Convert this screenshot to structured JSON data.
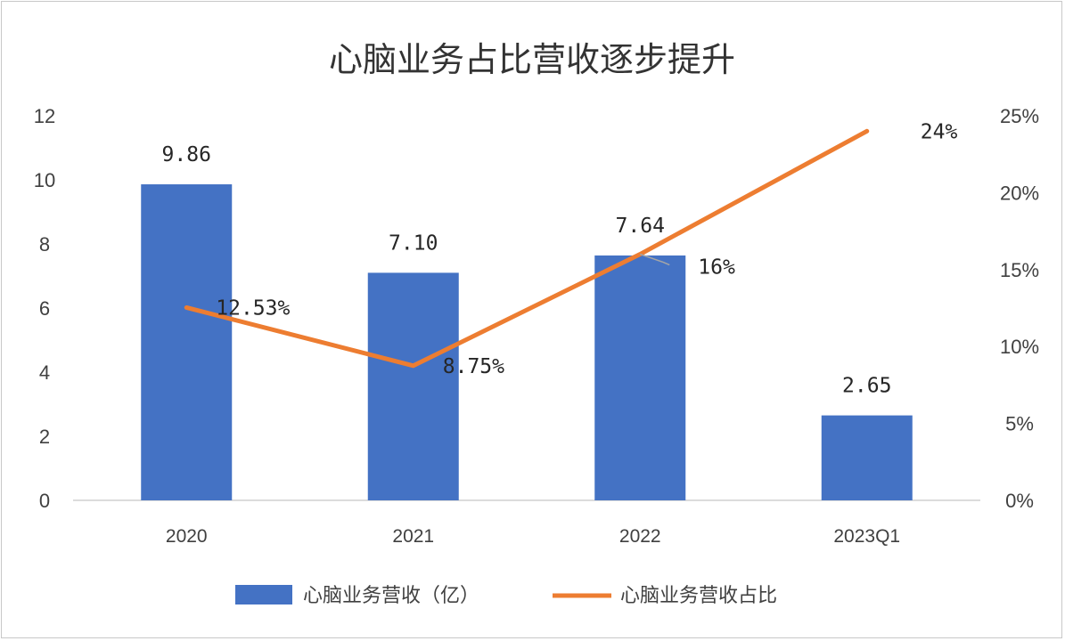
{
  "chart_data": {
    "type": "bar+line",
    "title": "心脑业务占比营收逐步提升",
    "categories": [
      "2020",
      "2021",
      "2022",
      "2023Q1"
    ],
    "series": [
      {
        "name": "心脑业务营收（亿）",
        "type": "bar",
        "axis": "left",
        "values": [
          9.86,
          7.1,
          7.64,
          2.65
        ],
        "labels": [
          "9.86",
          "7.10",
          "7.64",
          "2.65"
        ],
        "color": "#4472C4"
      },
      {
        "name": "心脑业务营收占比",
        "type": "line",
        "axis": "right",
        "values": [
          12.53,
          8.75,
          16,
          24
        ],
        "labels": [
          "12.53%",
          "8.75%",
          "16%",
          "24%"
        ],
        "color": "#ED7D31"
      }
    ],
    "y_left": {
      "min": 0,
      "max": 12,
      "ticks": [
        "0",
        "2",
        "4",
        "6",
        "8",
        "10",
        "12"
      ]
    },
    "y_right": {
      "min": 0,
      "max": 25,
      "ticks": [
        "0%",
        "5%",
        "10%",
        "15%",
        "20%",
        "25%"
      ]
    },
    "grid": false,
    "legend_position": "bottom"
  }
}
